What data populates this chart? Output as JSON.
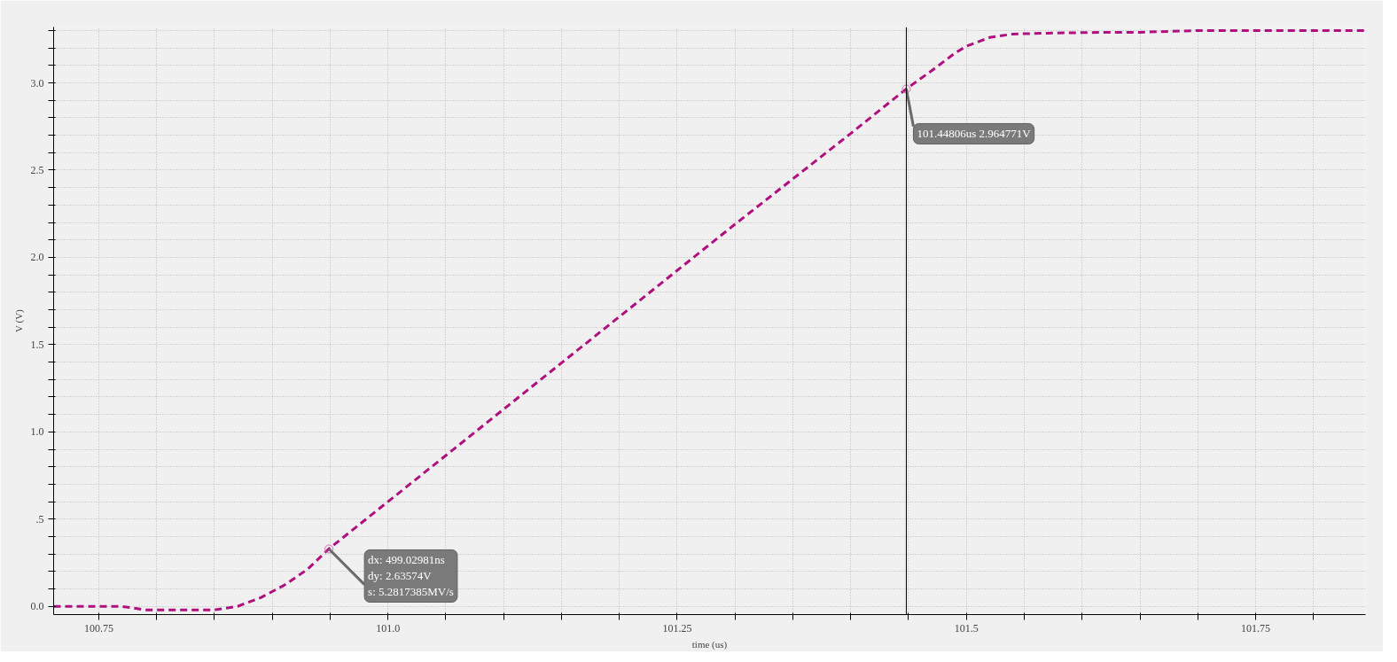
{
  "chart_data": {
    "type": "line",
    "xlabel": "time (us)",
    "ylabel": "V (V)",
    "x": [
      100.711,
      100.77,
      100.79,
      100.82,
      100.85,
      100.87,
      100.89,
      100.91,
      100.93,
      100.949,
      101.0,
      101.1,
      101.2,
      101.3,
      101.4,
      101.448,
      101.47,
      101.49,
      101.5,
      101.52,
      101.54,
      101.57,
      101.62,
      101.65,
      101.7,
      101.75,
      101.8,
      101.845
    ],
    "series": [
      {
        "color": "#b0107f",
        "values": [
          0.0,
          0.0,
          -0.02,
          -0.02,
          -0.02,
          0.0,
          0.05,
          0.12,
          0.21,
          0.33,
          0.6,
          1.13,
          1.66,
          2.19,
          2.71,
          2.965,
          3.07,
          3.17,
          3.21,
          3.26,
          3.28,
          3.285,
          3.29,
          3.29,
          3.3,
          3.3,
          3.3,
          3.3
        ]
      }
    ],
    "xlim": [
      100.711,
      101.845
    ],
    "ylim": [
      -0.047,
      3.32
    ],
    "xticks": [
      {
        "value": 100.75,
        "label": "100.75"
      },
      {
        "value": 100.8,
        "label": null
      },
      {
        "value": 100.85,
        "label": null
      },
      {
        "value": 100.9,
        "label": null
      },
      {
        "value": 100.95,
        "label": null
      },
      {
        "value": 101.0,
        "label": "101.0"
      },
      {
        "value": 101.05,
        "label": null
      },
      {
        "value": 101.1,
        "label": null
      },
      {
        "value": 101.15,
        "label": null
      },
      {
        "value": 101.2,
        "label": null
      },
      {
        "value": 101.25,
        "label": "101.25"
      },
      {
        "value": 101.3,
        "label": null
      },
      {
        "value": 101.35,
        "label": null
      },
      {
        "value": 101.4,
        "label": null
      },
      {
        "value": 101.45,
        "label": null
      },
      {
        "value": 101.5,
        "label": "101.5"
      },
      {
        "value": 101.55,
        "label": null
      },
      {
        "value": 101.6,
        "label": null
      },
      {
        "value": 101.65,
        "label": null
      },
      {
        "value": 101.7,
        "label": null
      },
      {
        "value": 101.75,
        "label": "101.75"
      },
      {
        "value": 101.8,
        "label": null
      }
    ],
    "yticks": [
      {
        "value": 0.0,
        "label": "0.0"
      },
      {
        "value": 0.1,
        "label": null
      },
      {
        "value": 0.2,
        "label": null
      },
      {
        "value": 0.3,
        "label": null
      },
      {
        "value": 0.4,
        "label": null
      },
      {
        "value": 0.5,
        "label": ".5"
      },
      {
        "value": 0.6,
        "label": null
      },
      {
        "value": 0.7,
        "label": null
      },
      {
        "value": 0.8,
        "label": null
      },
      {
        "value": 0.9,
        "label": null
      },
      {
        "value": 1.0,
        "label": "1.0"
      },
      {
        "value": 1.1,
        "label": null
      },
      {
        "value": 1.2,
        "label": null
      },
      {
        "value": 1.3,
        "label": null
      },
      {
        "value": 1.4,
        "label": null
      },
      {
        "value": 1.5,
        "label": "1.5"
      },
      {
        "value": 1.6,
        "label": null
      },
      {
        "value": 1.7,
        "label": null
      },
      {
        "value": 1.8,
        "label": null
      },
      {
        "value": 1.9,
        "label": null
      },
      {
        "value": 2.0,
        "label": "2.0"
      },
      {
        "value": 2.1,
        "label": null
      },
      {
        "value": 2.2,
        "label": null
      },
      {
        "value": 2.3,
        "label": null
      },
      {
        "value": 2.4,
        "label": null
      },
      {
        "value": 2.5,
        "label": "2.5"
      },
      {
        "value": 2.6,
        "label": null
      },
      {
        "value": 2.7,
        "label": null
      },
      {
        "value": 2.8,
        "label": null
      },
      {
        "value": 2.9,
        "label": null
      },
      {
        "value": 3.0,
        "label": "3.0"
      },
      {
        "value": 3.1,
        "label": null
      },
      {
        "value": 3.2,
        "label": null
      },
      {
        "value": 3.3,
        "label": null
      }
    ],
    "grid": true,
    "line_style": "dashed",
    "ref_lines": [
      {
        "axis": "x",
        "value": 101.44806,
        "label": null,
        "color": "#000000",
        "line_style": "solid"
      }
    ],
    "annotations": [
      {
        "text": "101.44806us 2.964771V",
        "x": 101.44806,
        "y": 2.964771
      },
      {
        "text": "dx: 499.02981ns\ndy: 2.63574V\ns: 5.2817385MV/s",
        "x": 100.949,
        "y": 0.329
      }
    ]
  }
}
